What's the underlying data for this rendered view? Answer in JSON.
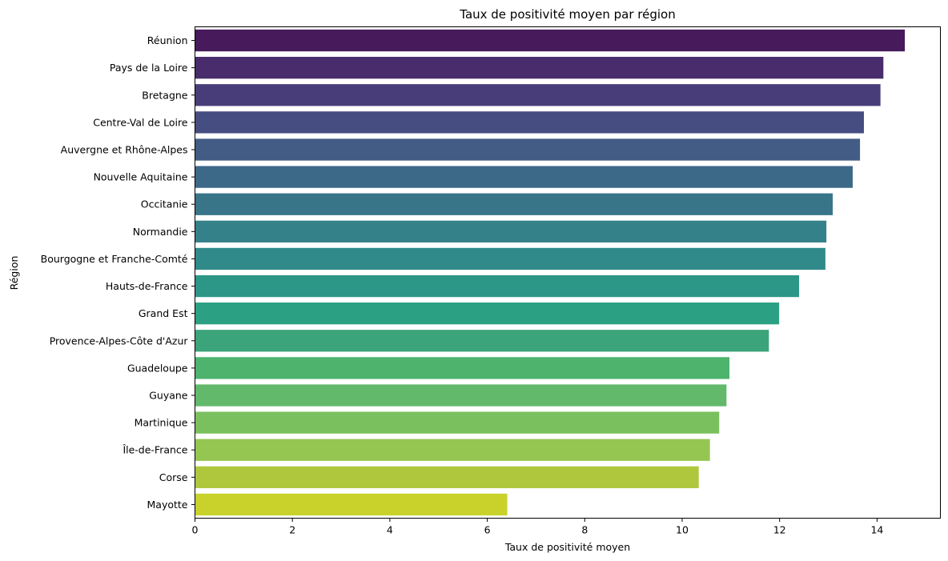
{
  "chart_data": {
    "type": "bar",
    "orientation": "horizontal",
    "title": "Taux de positivité moyen par région",
    "xlabel": "Taux de positivité moyen",
    "ylabel": "Région",
    "xlim": [
      0,
      15.3
    ],
    "xticks": [
      0,
      2,
      4,
      6,
      8,
      10,
      12,
      14
    ],
    "grid": false,
    "categories": [
      "Réunion",
      "Pays de la Loire",
      "Bretagne",
      "Centre-Val de Loire",
      "Auvergne et Rhône-Alpes",
      "Nouvelle Aquitaine",
      "Occitanie",
      "Normandie",
      "Bourgogne et Franche-Comté",
      "Hauts-de-France",
      "Grand Est",
      "Provence-Alpes-Côte d'Azur",
      "Guadeloupe",
      "Guyane",
      "Martinique",
      "Île-de-France",
      "Corse",
      "Mayotte"
    ],
    "values": [
      14.57,
      14.13,
      14.07,
      13.73,
      13.65,
      13.5,
      13.09,
      12.96,
      12.94,
      12.4,
      11.99,
      11.78,
      10.97,
      10.91,
      10.76,
      10.57,
      10.34,
      6.41
    ],
    "colors": [
      "#471a5c",
      "#482c6c",
      "#493d79",
      "#464d81",
      "#425c85",
      "#3d6988",
      "#387589",
      "#35818a",
      "#2f8a89",
      "#2c9687",
      "#2ca082",
      "#3ba47a",
      "#4db36d",
      "#63b96b",
      "#7ac05e",
      "#95c652",
      "#afc73d",
      "#c9d22b"
    ]
  }
}
